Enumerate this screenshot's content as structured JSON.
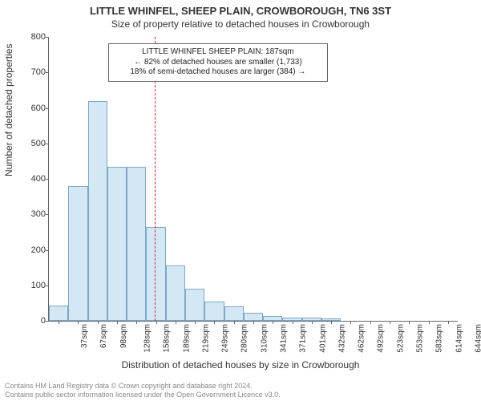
{
  "title": "LITTLE WHINFEL, SHEEP PLAIN, CROWBOROUGH, TN6 3ST",
  "subtitle": "Size of property relative to detached houses in Crowborough",
  "ylabel": "Number of detached properties",
  "xlabel": "Distribution of detached houses by size in Crowborough",
  "footer_line1": "Contains HM Land Registry data © Crown copyright and database right 2024.",
  "footer_line2": "Contains public sector information licensed under the Open Government Licence v3.0.",
  "chart": {
    "type": "histogram",
    "ylim": [
      0,
      800
    ],
    "ytick_step": 100,
    "bar_fill": "#d4e7f5",
    "bar_stroke": "#7aa8c8",
    "background": "#ffffff",
    "axis_color": "#666666",
    "refline_color": "#e02020",
    "refline_x_value": 187,
    "x_min": 22,
    "x_max": 660,
    "categories": [
      "37sqm",
      "67sqm",
      "98sqm",
      "128sqm",
      "158sqm",
      "189sqm",
      "219sqm",
      "249sqm",
      "280sqm",
      "310sqm",
      "341sqm",
      "371sqm",
      "401sqm",
      "432sqm",
      "462sqm",
      "492sqm",
      "523sqm",
      "553sqm",
      "583sqm",
      "614sqm",
      "644sqm"
    ],
    "values": [
      42,
      380,
      620,
      435,
      435,
      265,
      155,
      90,
      55,
      40,
      22,
      14,
      10,
      10,
      6,
      0,
      0,
      0,
      0,
      0,
      0
    ]
  },
  "annotation": {
    "line1": "LITTLE WHINFEL SHEEP PLAIN: 187sqm",
    "line2": "← 82% of detached houses are smaller (1,733)",
    "line3": "18% of semi-detached houses are larger (384) →"
  }
}
